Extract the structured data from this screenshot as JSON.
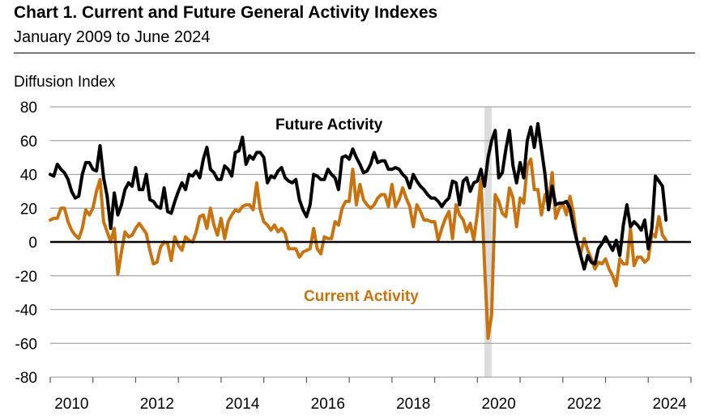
{
  "chart_data": {
    "type": "line",
    "title": "Chart 1. Current and Future General Activity Indexes",
    "subtitle": "January 2009 to June 2024",
    "ylabel": "Diffusion Index",
    "xlabel": "",
    "ylim": [
      -80,
      80
    ],
    "yticks": [
      80,
      60,
      40,
      20,
      0,
      -20,
      -40,
      -60,
      -80
    ],
    "xlim": [
      "2010-01",
      "2024-12"
    ],
    "xtick_labels": [
      "2010",
      "2012",
      "2014",
      "2016",
      "2018",
      "2020",
      "2022",
      "2024"
    ],
    "grid": true,
    "shaded_period": [
      "2020-03",
      "2020-04"
    ],
    "colors": {
      "current": "#C8730F",
      "future": "#000000",
      "shade": "#DDDDDD",
      "grid": "#A6A6A6"
    },
    "series": [
      {
        "name": "Future Activity",
        "key": "future",
        "monthly_by_year": [
          {
            "year": 2010,
            "values": [
              40,
              39,
              46,
              43,
              41,
              37,
              30,
              26,
              27,
              40,
              47,
              47
            ]
          },
          {
            "year": 2011,
            "values": [
              43,
              42,
              57,
              38,
              27,
              8,
              29,
              16,
              22,
              31,
              35,
              33
            ]
          },
          {
            "year": 2012,
            "values": [
              44,
              31,
              31,
              40,
              25,
              24,
              21,
              20,
              32,
              18,
              17,
              24
            ]
          },
          {
            "year": 2013,
            "values": [
              30,
              35,
              31,
              40,
              39,
              42,
              38,
              49,
              56,
              43,
              41,
              37
            ]
          },
          {
            "year": 2014,
            "values": [
              37,
              45,
              43,
              39,
              53,
              54,
              62,
              46,
              51,
              49,
              53,
              53
            ]
          },
          {
            "year": 2015,
            "values": [
              50,
              35,
              39,
              38,
              42,
              44,
              38,
              36,
              35,
              37,
              25,
              19
            ]
          },
          {
            "year": 2016,
            "values": [
              15,
              22,
              40,
              39,
              37,
              37,
              43,
              40,
              38,
              31,
              50,
              51
            ]
          },
          {
            "year": 2017,
            "values": [
              49,
              55,
              50,
              46,
              41,
              42,
              46,
              53,
              47,
              48,
              48,
              43
            ]
          },
          {
            "year": 2018,
            "values": [
              43,
              44,
              43,
              40,
              38,
              32,
              40,
              36,
              33,
              31,
              28,
              26
            ]
          },
          {
            "year": 2019,
            "values": [
              26,
              24,
              21,
              24,
              26,
              36,
              35,
              22,
              36,
              38,
              30,
              35
            ]
          },
          {
            "year": 2020,
            "values": [
              36,
              43,
              33,
              50,
              60,
              66,
              38,
              41,
              55,
              66,
              45,
              35
            ]
          },
          {
            "year": 2021,
            "values": [
              47,
              38,
              60,
              68,
              56,
              70,
              55,
              40,
              19,
              33,
              22,
              23
            ]
          },
          {
            "year": 2022,
            "values": [
              23,
              24,
              20,
              9,
              0,
              -8,
              -16,
              -8,
              -12,
              -13,
              -4,
              -1
            ]
          },
          {
            "year": 2023,
            "values": [
              3,
              -1,
              -5,
              1,
              -8,
              10,
              22,
              9,
              12,
              10,
              7,
              13
            ]
          },
          {
            "year": 2024,
            "values": [
              -4,
              8,
              39,
              36,
              33,
              13
            ]
          }
        ]
      },
      {
        "name": "Current Activity",
        "key": "current",
        "monthly_by_year": [
          {
            "year": 2010,
            "values": [
              13,
              14,
              14,
              20,
              20,
              12,
              7,
              4,
              2,
              8,
              19,
              16
            ]
          },
          {
            "year": 2011,
            "values": [
              20,
              30,
              37,
              12,
              6,
              0,
              8,
              -19,
              -6,
              6,
              3,
              4
            ]
          },
          {
            "year": 2012,
            "values": [
              8,
              11,
              8,
              5,
              -5,
              -13,
              -12,
              -3,
              0,
              -1,
              -11,
              3
            ]
          },
          {
            "year": 2013,
            "values": [
              -2,
              -5,
              3,
              1,
              0,
              6,
              15,
              16,
              8,
              20,
              10,
              4
            ]
          },
          {
            "year": 2014,
            "values": [
              14,
              2,
              12,
              16,
              19,
              18,
              21,
              22,
              22,
              19,
              35,
              19
            ]
          },
          {
            "year": 2015,
            "values": [
              12,
              10,
              7,
              10,
              6,
              8,
              5,
              -4,
              -4,
              -4,
              -9,
              -6
            ]
          },
          {
            "year": 2016,
            "values": [
              -5,
              -4,
              8,
              -4,
              -7,
              3,
              2,
              2,
              12,
              10,
              20,
              24
            ]
          },
          {
            "year": 2017,
            "values": [
              24,
              43,
              22,
              34,
              25,
              22,
              20,
              22,
              26,
              28,
              28,
              21
            ]
          },
          {
            "year": 2018,
            "values": [
              34,
              21,
              25,
              32,
              26,
              21,
              9,
              22,
              18,
              13,
              13,
              12
            ]
          },
          {
            "year": 2019,
            "values": [
              12,
              1,
              8,
              14,
              18,
              2,
              22,
              16,
              13,
              6,
              11,
              1
            ]
          },
          {
            "year": 2020,
            "values": [
              17,
              37,
              -13,
              -57,
              -43,
              28,
              24,
              17,
              15,
              32,
              26,
              9
            ]
          },
          {
            "year": 2021,
            "values": [
              26,
              23,
              45,
              49,
              31,
              31,
              16,
              28,
              22,
              41,
              14,
              20
            ]
          },
          {
            "year": 2022,
            "values": [
              23,
              16,
              27,
              17,
              0,
              -7,
              2,
              -5,
              -10,
              -16,
              -12,
              -13
            ]
          },
          {
            "year": 2023,
            "values": [
              -10,
              -16,
              -20,
              -26,
              -10,
              -13,
              -13,
              8,
              -14,
              -9,
              -9,
              -12
            ]
          },
          {
            "year": 2024,
            "values": [
              -10,
              5,
              3,
              15,
              4,
              1
            ]
          }
        ]
      }
    ],
    "annotations": [
      {
        "text": "Future Activity",
        "series": "future"
      },
      {
        "text": "Current Activity",
        "series": "current"
      }
    ]
  }
}
